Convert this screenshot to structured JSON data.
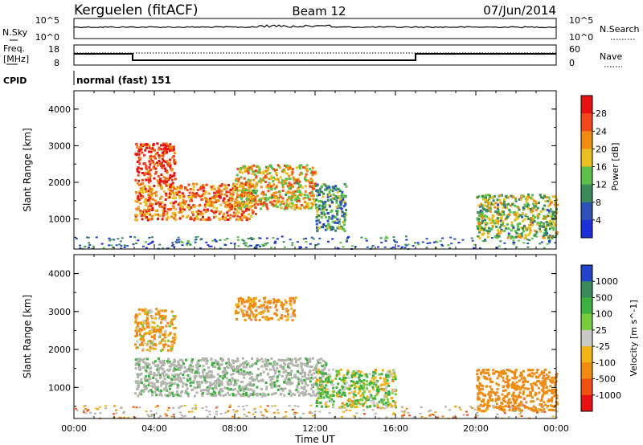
{
  "header": {
    "station": "Kerguelen (fitACF)",
    "beam": "Beam 12",
    "date": "07/Jun/2014"
  },
  "noise_panel": {
    "left_label": "N.Sky",
    "left_ticks": [
      "10^5",
      "10^0"
    ],
    "right_ticks": [
      "10^5",
      "10^0"
    ],
    "right_label": "N.Search"
  },
  "freq_panel": {
    "left_label_1": "Freq.",
    "left_label_2": "[MHz]",
    "left_ticks": [
      "18",
      "8"
    ],
    "right_ticks": [
      "60",
      "0"
    ],
    "right_label": "Nave"
  },
  "cpid": {
    "label": "CPID",
    "value": "normal (fast) 151"
  },
  "colors": {
    "power_scale": [
      "#1c2fd8",
      "#2a52b8",
      "#3a8a5a",
      "#5cc04a",
      "#e8c020",
      "#f08a10",
      "#f04818",
      "#e81010"
    ],
    "velocity_scale": [
      "#2244cc",
      "#3a8a5a",
      "#3cb040",
      "#78cc3c",
      "#c8c8c4",
      "#f0b418",
      "#f08a10",
      "#f05010",
      "#e81010"
    ],
    "ground_scatter": "#b4b4ae"
  },
  "chart_data": [
    {
      "type": "heatmap",
      "title": "",
      "xlabel": "",
      "ylabel": "Slant Range [km]",
      "x_ticks": [
        "00:00",
        "04:00",
        "08:00",
        "12:00",
        "16:00",
        "20:00",
        "00:00"
      ],
      "y_ticks": [
        "1000",
        "2000",
        "3000",
        "4000"
      ],
      "xlim_hours": [
        0,
        24
      ],
      "ylim_km": [
        180,
        4500
      ],
      "colorbar": {
        "label": "Power [dB]",
        "ticks": [
          "4",
          "8",
          "12",
          "16",
          "20",
          "24",
          "28"
        ],
        "range": [
          0,
          30
        ]
      },
      "echo_regions": [
        {
          "t0": 3.0,
          "t1": 9.0,
          "r0": 1000,
          "r1": 2000,
          "level_db": 22
        },
        {
          "t0": 3.0,
          "t1": 5.0,
          "r0": 2000,
          "r1": 3100,
          "level_db": 26
        },
        {
          "t0": 8.0,
          "t1": 12.0,
          "r0": 1300,
          "r1": 2500,
          "level_db": 18
        },
        {
          "t0": 12.0,
          "t1": 13.5,
          "r0": 700,
          "r1": 2000,
          "level_db": 10
        },
        {
          "t0": 20.0,
          "t1": 24.0,
          "r0": 500,
          "r1": 1700,
          "level_db": 14
        }
      ]
    },
    {
      "type": "heatmap",
      "title": "",
      "xlabel": "Time UT",
      "ylabel": "Slant Range [km]",
      "x_ticks": [
        "00:00",
        "04:00",
        "08:00",
        "12:00",
        "16:00",
        "20:00",
        "00:00"
      ],
      "y_ticks": [
        "1000",
        "2000",
        "3000",
        "4000"
      ],
      "xlim_hours": [
        0,
        24
      ],
      "ylim_km": [
        180,
        4500
      ],
      "colorbar": {
        "label": "Velocity [m s^-1]",
        "ticks": [
          "1000",
          "500",
          "100",
          "25",
          "-25",
          "-100",
          "-500",
          "-1000"
        ],
        "range": [
          -1000,
          1000
        ]
      },
      "echo_regions": [
        {
          "t0": 3.0,
          "t1": 12.5,
          "r0": 800,
          "r1": 1800,
          "velocity_ms": 0
        },
        {
          "t0": 3.0,
          "t1": 5.0,
          "r0": 2000,
          "r1": 3100,
          "velocity_ms": -150
        },
        {
          "t0": 8.0,
          "t1": 11.0,
          "r0": 2800,
          "r1": 3400,
          "velocity_ms": -200
        },
        {
          "t0": 12.0,
          "t1": 16.0,
          "r0": 500,
          "r1": 1500,
          "velocity_ms": 80
        },
        {
          "t0": 20.0,
          "t1": 24.0,
          "r0": 400,
          "r1": 1500,
          "velocity_ms": -300
        }
      ]
    }
  ]
}
